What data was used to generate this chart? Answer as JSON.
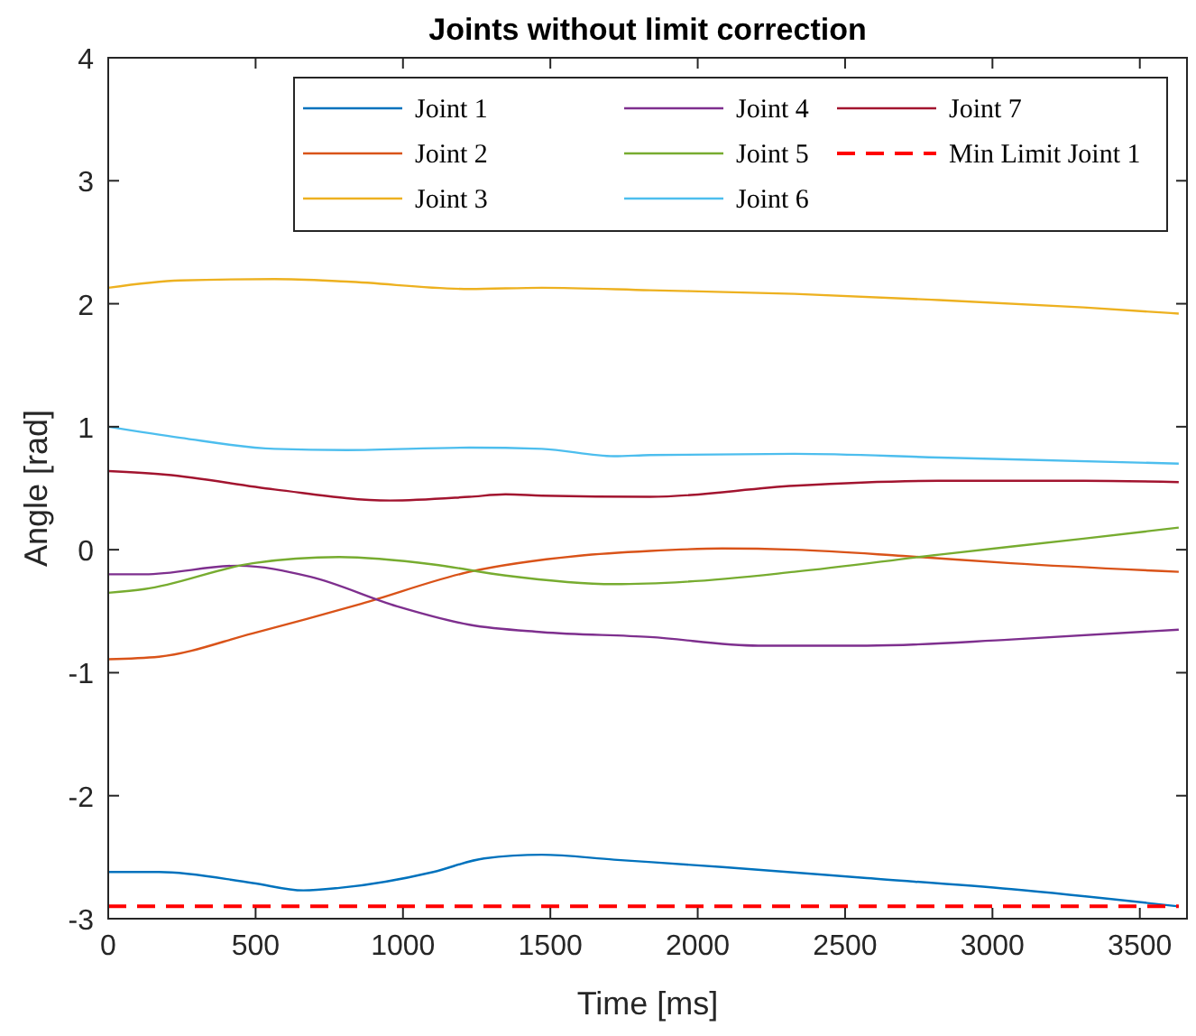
{
  "chart_data": {
    "type": "line",
    "title": "Joints without limit correction",
    "xlabel": "Time [ms]",
    "ylabel": "Angle [rad]",
    "xlim": [
      0,
      3660
    ],
    "xticks": [
      0,
      500,
      1000,
      1500,
      2000,
      2500,
      3000,
      3500
    ],
    "ylim": [
      -3,
      4
    ],
    "yticks": [
      -3,
      -2,
      -1,
      0,
      1,
      2,
      3,
      4
    ],
    "grid": false,
    "legend": "top right",
    "series": [
      {
        "name": "Joint 1",
        "color": "#0072bd",
        "x": [
          0,
          172,
          490,
          662,
          784,
          1103,
          1275,
          1471,
          1716,
          2083,
          2574,
          3064,
          3632
        ],
        "values": [
          -2.62,
          -2.62,
          -2.71,
          -2.77,
          -2.75,
          -2.62,
          -2.51,
          -2.48,
          -2.52,
          -2.58,
          -2.67,
          -2.76,
          -2.9
        ]
      },
      {
        "name": "Joint 2",
        "color": "#d95319",
        "x": [
          0,
          172,
          490,
          858,
          1225,
          1593,
          1838,
          2083,
          2328,
          2696,
          3064,
          3632
        ],
        "values": [
          -0.89,
          -0.87,
          -0.68,
          -0.44,
          -0.18,
          -0.05,
          -0.01,
          0.01,
          0,
          -0.05,
          -0.11,
          -0.18
        ]
      },
      {
        "name": "Joint 3",
        "color": "#edb120",
        "x": [
          0,
          245,
          564,
          809,
          1225,
          1471,
          1838,
          2328,
          2819,
          3309,
          3632
        ],
        "values": [
          2.13,
          2.19,
          2.2,
          2.18,
          2.12,
          2.13,
          2.11,
          2.08,
          2.03,
          1.97,
          1.92
        ]
      },
      {
        "name": "Joint 4",
        "color": "#7e2f8e",
        "x": [
          0,
          123,
          441,
          686,
          980,
          1225,
          1471,
          1838,
          2206,
          2574,
          3064,
          3632
        ],
        "values": [
          -0.2,
          -0.2,
          -0.13,
          -0.22,
          -0.46,
          -0.61,
          -0.67,
          -0.71,
          -0.78,
          -0.78,
          -0.73,
          -0.65
        ]
      },
      {
        "name": "Joint 5",
        "color": "#77ac30",
        "x": [
          0,
          123,
          490,
          784,
          1103,
          1348,
          1716,
          1961,
          2328,
          2819,
          3309,
          3632
        ],
        "values": [
          -0.35,
          -0.32,
          -0.11,
          -0.06,
          -0.12,
          -0.21,
          -0.28,
          -0.26,
          -0.18,
          -0.04,
          0.09,
          0.18
        ]
      },
      {
        "name": "Joint 6",
        "color": "#4dbeee",
        "x": [
          0,
          245,
          564,
          809,
          1225,
          1471,
          1716,
          1838,
          2328,
          2819,
          3632
        ],
        "values": [
          1,
          0.91,
          0.82,
          0.81,
          0.83,
          0.82,
          0.76,
          0.77,
          0.78,
          0.75,
          0.7
        ]
      },
      {
        "name": "Joint 7",
        "color": "#a2142f",
        "x": [
          0,
          196,
          564,
          956,
          1225,
          1348,
          1471,
          1838,
          2328,
          2819,
          3309,
          3632
        ],
        "values": [
          0.64,
          0.61,
          0.49,
          0.4,
          0.43,
          0.45,
          0.44,
          0.43,
          0.52,
          0.56,
          0.56,
          0.55
        ]
      },
      {
        "name": "Min Limit Joint 1",
        "color": "#ff0000",
        "line_style": "dashed",
        "x": [
          0,
          3632
        ],
        "values": [
          -2.9,
          -2.9
        ]
      }
    ]
  }
}
